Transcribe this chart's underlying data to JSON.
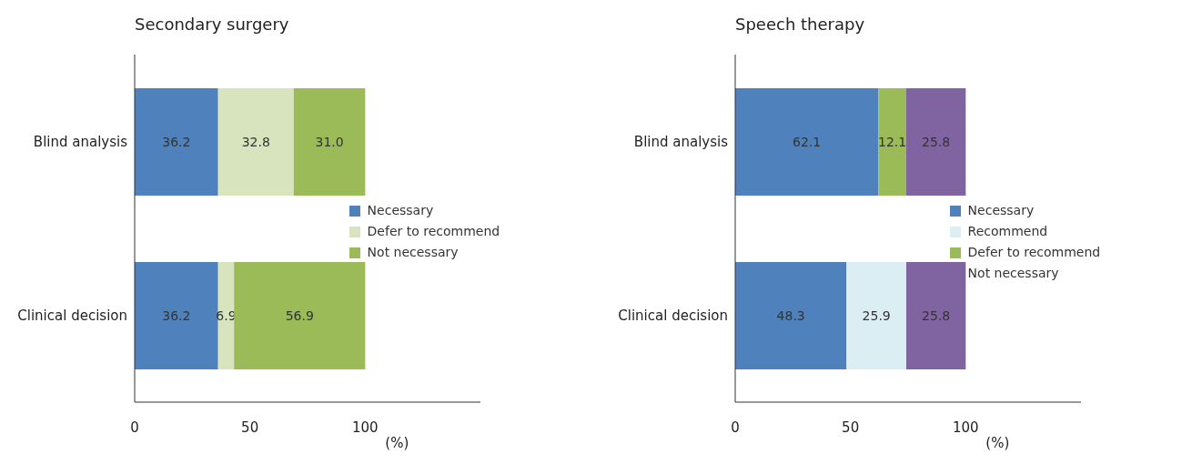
{
  "chart_data": [
    {
      "type": "bar",
      "orientation": "horizontal",
      "stacked": true,
      "title": "Secondary surgery",
      "xlabel": "(%)",
      "categories": [
        "Blind analysis",
        "Clinical decision"
      ],
      "xlim": [
        0,
        150
      ],
      "xticks": [
        0,
        50,
        100
      ],
      "grid": false,
      "legend": "right",
      "series": [
        {
          "name": "Necessary",
          "color": "#4f81bd",
          "values": [
            36.2,
            36.2
          ],
          "value_labels": [
            "36.2",
            "36.2"
          ]
        },
        {
          "name": "Defer to recommend",
          "color": "#d7e4bd",
          "values": [
            32.8,
            6.9
          ],
          "value_labels": [
            "32.8",
            "6.9"
          ]
        },
        {
          "name": "Not necessary",
          "color": "#9bbb59",
          "values": [
            31.0,
            56.9
          ],
          "value_labels": [
            "31.0",
            "56.9"
          ]
        }
      ]
    },
    {
      "type": "bar",
      "orientation": "horizontal",
      "stacked": true,
      "title": "Speech therapy",
      "xlabel": "(%)",
      "categories": [
        "Blind analysis",
        "Clinical decision"
      ],
      "xlim": [
        0,
        150
      ],
      "xticks": [
        0,
        50,
        100
      ],
      "grid": false,
      "legend": "right",
      "series": [
        {
          "name": "Necessary",
          "color": "#4f81bd",
          "values": [
            62.1,
            48.3
          ],
          "value_labels": [
            "62.1",
            "48.3"
          ]
        },
        {
          "name": "Recommend",
          "color": "#dbeef4",
          "values": [
            null,
            25.9
          ],
          "value_labels": [
            null,
            "25.9"
          ]
        },
        {
          "name": "Defer to recommend",
          "color": "#9bbb59",
          "values": [
            12.1,
            null
          ],
          "value_labels": [
            "12.1",
            null
          ]
        },
        {
          "name": "Not necessary",
          "color": "#8064a2",
          "values": [
            25.8,
            25.8
          ],
          "value_labels": [
            "25.8",
            "25.8"
          ]
        }
      ]
    }
  ]
}
